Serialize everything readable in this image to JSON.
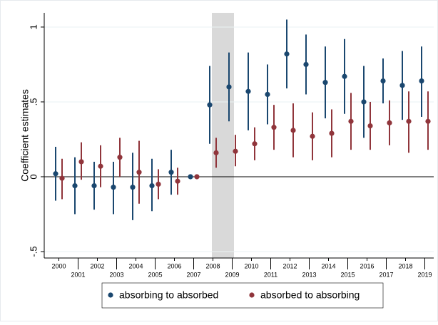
{
  "chart_data": {
    "type": "coefplot",
    "y_label": "Coefficient estimates",
    "categories": [
      "2000",
      "2001",
      "2002",
      "2003",
      "2004",
      "2005",
      "2006",
      "2007",
      "2008",
      "2009",
      "2010",
      "2011",
      "2012",
      "2013",
      "2014",
      "2015",
      "2016",
      "2017",
      "2018",
      "2019"
    ],
    "series": [
      {
        "name": "absorbing to absorbed",
        "color": "#1a476f",
        "values": [
          0.02,
          -0.06,
          -0.06,
          -0.07,
          -0.07,
          -0.06,
          0.03,
          0,
          0.48,
          0.6,
          0.57,
          0.55,
          0.82,
          0.75,
          0.63,
          0.67,
          0.5,
          0.64,
          0.61,
          0.64
        ],
        "lower": [
          -0.16,
          -0.25,
          -0.22,
          -0.25,
          -0.29,
          -0.23,
          -0.12,
          0,
          0.22,
          0.37,
          0.31,
          0.35,
          0.59,
          0.55,
          0.39,
          0.42,
          0.26,
          0.49,
          0.38,
          0.4
        ],
        "upper": [
          0.2,
          0.13,
          0.1,
          0.1,
          0.16,
          0.12,
          0.18,
          0,
          0.74,
          0.83,
          0.83,
          0.75,
          1.05,
          0.95,
          0.87,
          0.92,
          0.74,
          0.79,
          0.84,
          0.87
        ]
      },
      {
        "name": "absorbed to absorbing",
        "color": "#90353b",
        "values": [
          -0.01,
          0.1,
          0.07,
          0.13,
          0.03,
          -0.05,
          -0.03,
          0,
          0.16,
          0.17,
          0.22,
          0.33,
          0.31,
          0.27,
          0.29,
          0.37,
          0.34,
          0.36,
          0.37,
          0.37
        ],
        "lower": [
          -0.15,
          -0.02,
          -0.07,
          0,
          -0.18,
          -0.15,
          -0.12,
          0,
          0.06,
          0.07,
          0.11,
          0.18,
          0.13,
          0.11,
          0.13,
          0.18,
          0.18,
          0.21,
          0.16,
          0.18
        ],
        "upper": [
          0.12,
          0.23,
          0.21,
          0.26,
          0.24,
          0.05,
          0.06,
          0,
          0.26,
          0.28,
          0.33,
          0.48,
          0.49,
          0.43,
          0.45,
          0.56,
          0.5,
          0.51,
          0.57,
          0.57
        ]
      }
    ],
    "ylim": [
      -0.543,
      1.095
    ],
    "yticks": [
      {
        "value": -0.5,
        "label": "-.5"
      },
      0,
      {
        "value": 0.5,
        "label": ".5"
      },
      1
    ],
    "grid": true
  }
}
